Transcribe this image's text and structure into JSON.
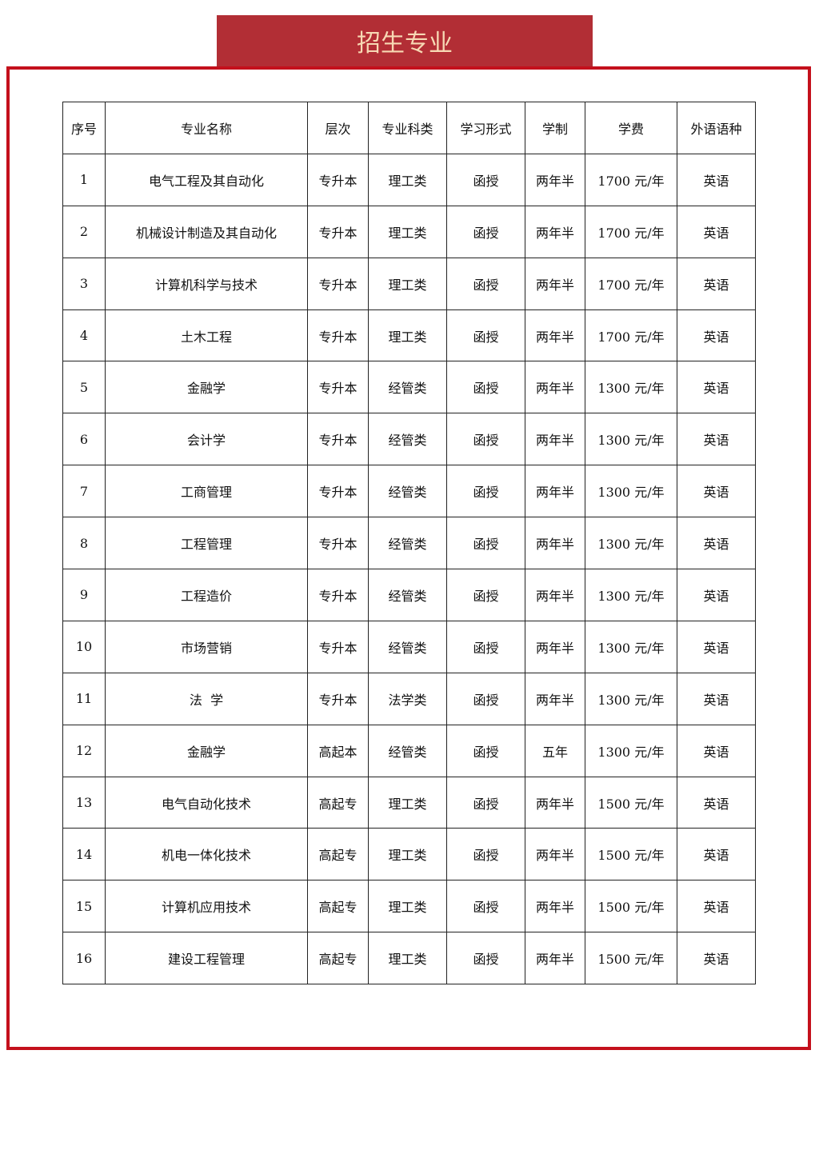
{
  "title": "招生专业",
  "colors": {
    "title_bg": "#b22e35",
    "title_text": "#f7d9b4",
    "frame": "#c4101c"
  },
  "table": {
    "headers": [
      "序号",
      "专业名称",
      "层次",
      "专业科类",
      "学习形式",
      "学制",
      "学费",
      "外语语种"
    ],
    "rows": [
      [
        "1",
        "电气工程及其自动化",
        "专升本",
        "理工类",
        "函授",
        "两年半",
        "1700 元/年",
        "英语"
      ],
      [
        "2",
        "机械设计制造及其自动化",
        "专升本",
        "理工类",
        "函授",
        "两年半",
        "1700 元/年",
        "英语"
      ],
      [
        "3",
        "计算机科学与技术",
        "专升本",
        "理工类",
        "函授",
        "两年半",
        "1700 元/年",
        "英语"
      ],
      [
        "4",
        "土木工程",
        "专升本",
        "理工类",
        "函授",
        "两年半",
        "1700 元/年",
        "英语"
      ],
      [
        "5",
        "金融学",
        "专升本",
        "经管类",
        "函授",
        "两年半",
        "1300 元/年",
        "英语"
      ],
      [
        "6",
        "会计学",
        "专升本",
        "经管类",
        "函授",
        "两年半",
        "1300 元/年",
        "英语"
      ],
      [
        "7",
        "工商管理",
        "专升本",
        "经管类",
        "函授",
        "两年半",
        "1300 元/年",
        "英语"
      ],
      [
        "8",
        "工程管理",
        "专升本",
        "经管类",
        "函授",
        "两年半",
        "1300 元/年",
        "英语"
      ],
      [
        "9",
        "工程造价",
        "专升本",
        "经管类",
        "函授",
        "两年半",
        "1300 元/年",
        "英语"
      ],
      [
        "10",
        "市场营销",
        "专升本",
        "经管类",
        "函授",
        "两年半",
        "1300 元/年",
        "英语"
      ],
      [
        "11",
        "法  学",
        "专升本",
        "法学类",
        "函授",
        "两年半",
        "1300 元/年",
        "英语"
      ],
      [
        "12",
        "金融学",
        "高起本",
        "经管类",
        "函授",
        "五年",
        "1300 元/年",
        "英语"
      ],
      [
        "13",
        "电气自动化技术",
        "高起专",
        "理工类",
        "函授",
        "两年半",
        "1500 元/年",
        "英语"
      ],
      [
        "14",
        "机电一体化技术",
        "高起专",
        "理工类",
        "函授",
        "两年半",
        "1500 元/年",
        "英语"
      ],
      [
        "15",
        "计算机应用技术",
        "高起专",
        "理工类",
        "函授",
        "两年半",
        "1500 元/年",
        "英语"
      ],
      [
        "16",
        "建设工程管理",
        "高起专",
        "理工类",
        "函授",
        "两年半",
        "1500 元/年",
        "英语"
      ]
    ]
  }
}
